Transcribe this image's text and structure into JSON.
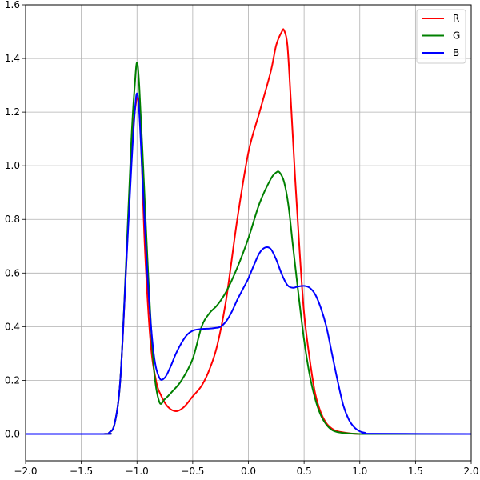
{
  "chart_data": {
    "type": "line",
    "title": "",
    "xlabel": "",
    "ylabel": "",
    "xlim": [
      -2.0,
      2.0
    ],
    "ylim": [
      -0.1,
      1.6
    ],
    "x_ticks": [
      -2.0,
      -1.5,
      -1.0,
      -0.5,
      0.0,
      0.5,
      1.0,
      1.5,
      2.0
    ],
    "x_tick_labels": [
      "−2.0",
      "−1.5",
      "−1.0",
      "−0.5",
      "0.0",
      "0.5",
      "1.0",
      "1.5",
      "2.0"
    ],
    "y_ticks": [
      0.0,
      0.2,
      0.4,
      0.6,
      0.8,
      1.0,
      1.2,
      1.4,
      1.6
    ],
    "y_tick_labels": [
      "0.0",
      "0.2",
      "0.4",
      "0.6",
      "0.8",
      "1.0",
      "1.2",
      "1.4",
      "1.6"
    ],
    "grid": true,
    "legend_position": "top-right",
    "series": [
      {
        "name": "R",
        "color": "#ff0000",
        "x": [
          -2.0,
          -1.3,
          -1.25,
          -1.2,
          -1.15,
          -1.1,
          -1.05,
          -1.0,
          -0.97,
          -0.93,
          -0.88,
          -0.83,
          -0.78,
          -0.72,
          -0.65,
          -0.58,
          -0.5,
          -0.42,
          -0.35,
          -0.28,
          -0.2,
          -0.1,
          0.0,
          0.1,
          0.2,
          0.25,
          0.3,
          0.32,
          0.35,
          0.38,
          0.42,
          0.46,
          0.5,
          0.55,
          0.6,
          0.65,
          0.7,
          0.75,
          0.8,
          0.9,
          1.0,
          1.1,
          2.0
        ],
        "y": [
          0.0,
          0.0,
          0.005,
          0.04,
          0.2,
          0.6,
          1.05,
          1.25,
          1.15,
          0.7,
          0.35,
          0.2,
          0.14,
          0.1,
          0.085,
          0.1,
          0.14,
          0.18,
          0.24,
          0.33,
          0.5,
          0.8,
          1.05,
          1.2,
          1.35,
          1.45,
          1.5,
          1.505,
          1.45,
          1.25,
          0.95,
          0.68,
          0.45,
          0.28,
          0.15,
          0.08,
          0.04,
          0.02,
          0.01,
          0.003,
          0.0,
          0.0,
          0.0
        ]
      },
      {
        "name": "G",
        "color": "#008000",
        "x": [
          -2.0,
          -1.3,
          -1.25,
          -1.2,
          -1.15,
          -1.1,
          -1.05,
          -1.02,
          -1.0,
          -0.98,
          -0.95,
          -0.9,
          -0.85,
          -0.8,
          -0.75,
          -0.68,
          -0.6,
          -0.5,
          -0.42,
          -0.35,
          -0.28,
          -0.2,
          -0.1,
          0.0,
          0.1,
          0.2,
          0.25,
          0.28,
          0.32,
          0.36,
          0.4,
          0.45,
          0.5,
          0.55,
          0.6,
          0.65,
          0.7,
          0.75,
          0.8,
          0.9,
          1.0,
          1.1,
          2.0
        ],
        "y": [
          0.0,
          0.0,
          0.005,
          0.04,
          0.2,
          0.62,
          1.1,
          1.3,
          1.385,
          1.3,
          1.05,
          0.6,
          0.25,
          0.12,
          0.13,
          0.16,
          0.2,
          0.28,
          0.4,
          0.45,
          0.48,
          0.53,
          0.62,
          0.73,
          0.86,
          0.95,
          0.975,
          0.975,
          0.94,
          0.85,
          0.7,
          0.52,
          0.35,
          0.22,
          0.13,
          0.07,
          0.035,
          0.015,
          0.007,
          0.002,
          0.0,
          0.0,
          0.0
        ]
      },
      {
        "name": "B",
        "color": "#0000ff",
        "x": [
          -2.0,
          -1.3,
          -1.25,
          -1.2,
          -1.15,
          -1.1,
          -1.05,
          -1.02,
          -1.0,
          -0.98,
          -0.95,
          -0.9,
          -0.85,
          -0.8,
          -0.75,
          -0.7,
          -0.65,
          -0.6,
          -0.55,
          -0.5,
          -0.45,
          -0.4,
          -0.35,
          -0.3,
          -0.25,
          -0.2,
          -0.15,
          -0.1,
          -0.05,
          0.0,
          0.05,
          0.1,
          0.15,
          0.2,
          0.25,
          0.3,
          0.35,
          0.4,
          0.45,
          0.5,
          0.55,
          0.6,
          0.65,
          0.7,
          0.75,
          0.8,
          0.85,
          0.9,
          0.95,
          1.0,
          1.05,
          1.1,
          2.0
        ],
        "y": [
          0.0,
          0.0,
          0.005,
          0.04,
          0.2,
          0.6,
          1.0,
          1.2,
          1.27,
          1.2,
          0.95,
          0.55,
          0.3,
          0.21,
          0.21,
          0.25,
          0.3,
          0.34,
          0.37,
          0.385,
          0.39,
          0.392,
          0.393,
          0.395,
          0.4,
          0.42,
          0.455,
          0.5,
          0.54,
          0.58,
          0.63,
          0.675,
          0.695,
          0.69,
          0.65,
          0.595,
          0.555,
          0.545,
          0.55,
          0.552,
          0.545,
          0.52,
          0.47,
          0.4,
          0.3,
          0.2,
          0.11,
          0.055,
          0.025,
          0.01,
          0.004,
          0.001,
          0.0
        ]
      }
    ]
  }
}
